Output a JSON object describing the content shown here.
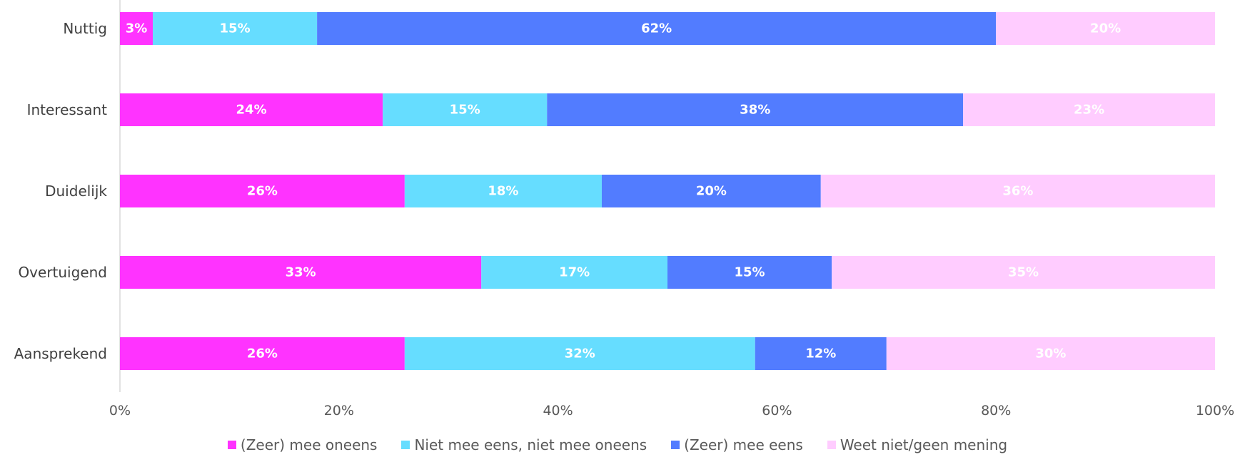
{
  "chart_data": {
    "type": "bar",
    "orientation": "horizontal",
    "stacked": true,
    "categories": [
      "Nuttig",
      "Interessant",
      "Duidelijk",
      "Overtuigend",
      "Aansprekend"
    ],
    "series": [
      {
        "name": "(Zeer) mee oneens",
        "color": "#ff33ff",
        "values": [
          3,
          24,
          26,
          33,
          26
        ]
      },
      {
        "name": "Niet mee eens, niet mee oneens",
        "color": "#66ddff",
        "values": [
          15,
          15,
          18,
          17,
          32
        ]
      },
      {
        "name": "(Zeer) mee eens",
        "color": "#527cff",
        "values": [
          62,
          38,
          20,
          15,
          12
        ]
      },
      {
        "name": "Weet niet/geen mening",
        "color": "#ffccff",
        "values": [
          20,
          23,
          36,
          35,
          30
        ]
      }
    ],
    "data_labels": [
      [
        "3%",
        "24%",
        "26%",
        "33%",
        "26%"
      ],
      [
        "15%",
        "15%",
        "18%",
        "17%",
        "32%"
      ],
      [
        "62%",
        "38%",
        "20%",
        "15%",
        "12%"
      ],
      [
        "20%",
        "23%",
        "36%",
        "35%",
        "30%"
      ]
    ],
    "x_ticks": [
      "0%",
      "20%",
      "40%",
      "60%",
      "80%",
      "100%"
    ],
    "xlim": [
      0,
      100
    ],
    "grid": false,
    "legend_position": "bottom"
  }
}
